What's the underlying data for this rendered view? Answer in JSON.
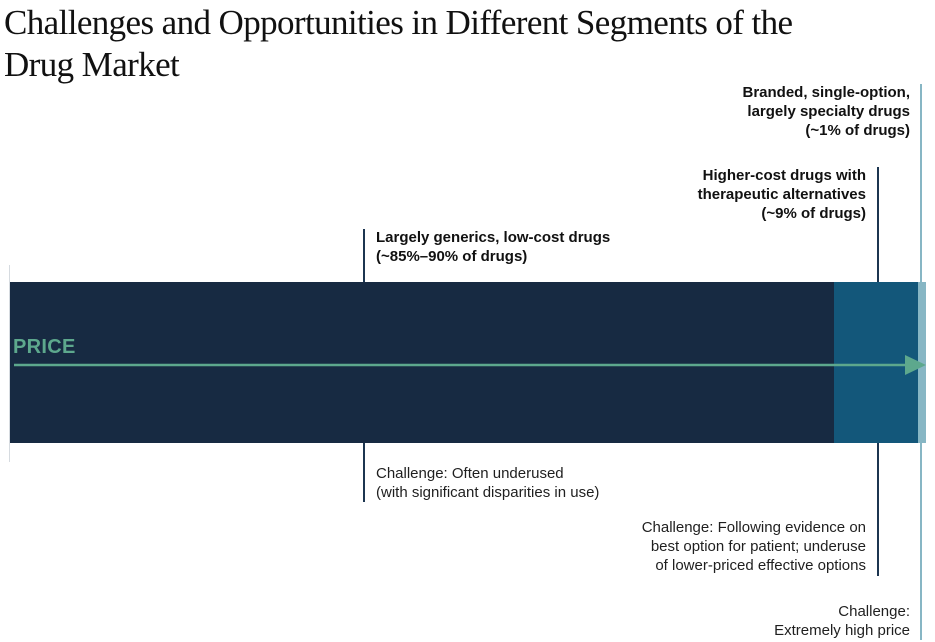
{
  "title": "Challenges and Opportunities in Different Segments of the Drug Market",
  "price_label": "PRICE",
  "segments": [
    {
      "name": "Largely generics, low-cost drugs",
      "share": "(~85%–90% of drugs)",
      "challenge": [
        "Challenge: Often underused",
        "(with significant disparities in use)"
      ]
    },
    {
      "name_lines": [
        "Higher-cost drugs with",
        "therapeutic alternatives"
      ],
      "share": "(~9% of drugs)",
      "challenge": [
        "Challenge: Following evidence on",
        "best option for patient; underuse",
        "of lower-priced effective options"
      ]
    },
    {
      "name_lines": [
        "Branded, single-option,",
        "largely specialty drugs"
      ],
      "share": "(~1% of drugs)",
      "challenge": [
        "Challenge:",
        "Extremely high price"
      ]
    }
  ],
  "colors": {
    "generics": "#172a42",
    "higher_cost": "#13577a",
    "specialty": "#87b6c4",
    "price_arrow": "#5da88d",
    "leader_line": "#1c3550"
  }
}
